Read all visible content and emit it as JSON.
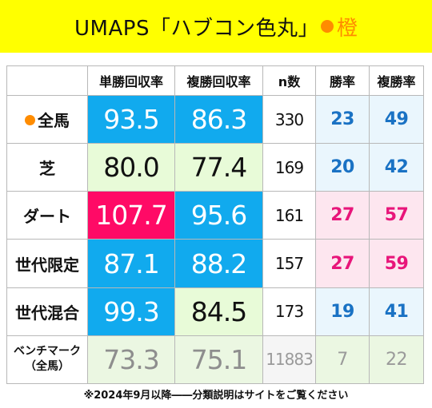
{
  "banner": {
    "title": "UMAPS「ハブコン色丸」",
    "color_name": "橙",
    "dot_color": "#ff8c00"
  },
  "table": {
    "headers": [
      "",
      "単勝回収率",
      "複勝回収率",
      "n数",
      "勝率",
      "複勝率"
    ],
    "rows": [
      {
        "label": "全馬",
        "label_dot": true,
        "win_return": "93.5",
        "place_return": "86.3",
        "n": "330",
        "win_rate": "23",
        "place_rate": "49"
      },
      {
        "label": "芝",
        "win_return": "80.0",
        "place_return": "77.4",
        "n": "169",
        "win_rate": "20",
        "place_rate": "42"
      },
      {
        "label": "ダート",
        "win_return": "107.7",
        "place_return": "95.6",
        "n": "161",
        "win_rate": "27",
        "place_rate": "57"
      },
      {
        "label": "世代限定",
        "win_return": "87.1",
        "place_return": "88.2",
        "n": "157",
        "win_rate": "27",
        "place_rate": "59"
      },
      {
        "label": "世代混合",
        "win_return": "99.3",
        "place_return": "84.5",
        "n": "173",
        "win_rate": "19",
        "place_rate": "41"
      },
      {
        "label_line1": "ベンチマーク",
        "label_line2": "（全馬）",
        "win_return": "73.3",
        "place_return": "75.1",
        "n": "11883",
        "win_rate": "7",
        "place_rate": "22"
      }
    ]
  },
  "colors": {
    "banner_bg": "#ffff00",
    "above_benchmark_blue": "#11aaee",
    "below_benchmark_green": "#e8fbd8",
    "highlight_red": "#ff0a66",
    "rate_blue": "#1a72c4",
    "rate_pink": "#e8157a"
  },
  "footnote": "※2024年9月以降――分類説明はサイトをご覧ください"
}
